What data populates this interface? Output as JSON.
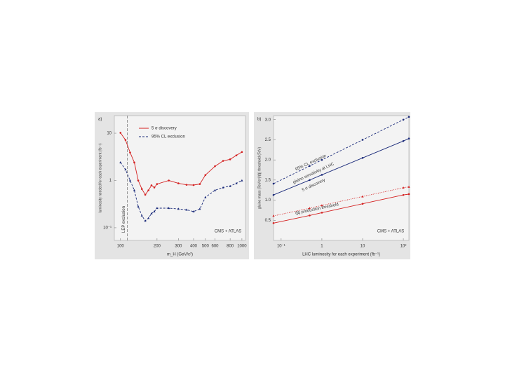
{
  "chart_data": [
    {
      "type": "line",
      "panel": "a)",
      "xlog": true,
      "ylog": true,
      "x_label": "m_H (GeV/c²)",
      "y_label": "luminosity needed for each experiment (fb⁻¹)",
      "x": [
        100,
        110,
        120,
        130,
        140,
        150,
        160,
        170,
        180,
        190,
        200,
        250,
        300,
        350,
        400,
        450,
        500,
        600,
        700,
        800,
        900,
        1000
      ],
      "series": [
        {
          "name": "5 σ discovery",
          "color": "#d42020",
          "dash": "solid",
          "marker": "circle",
          "values": [
            10.2,
            7.2,
            3.9,
            2.4,
            1.0,
            0.66,
            0.5,
            0.62,
            0.79,
            0.71,
            0.84,
            1.0,
            0.87,
            0.81,
            0.8,
            0.84,
            1.3,
            2.0,
            2.6,
            2.8,
            3.4,
            4.0
          ]
        },
        {
          "name": "95% CL exclusion",
          "color": "#1a2a7a",
          "dash": "dashed",
          "marker": "triangle",
          "values": [
            2.4,
            1.7,
            1.0,
            0.62,
            0.28,
            0.18,
            0.14,
            0.16,
            0.2,
            0.22,
            0.26,
            0.26,
            0.25,
            0.24,
            0.22,
            0.25,
            0.44,
            0.62,
            0.71,
            0.76,
            0.87,
            1.0
          ]
        }
      ],
      "vline": {
        "x": 114,
        "label": "LEP exclusion"
      },
      "annotations": [
        "CMS + ATLAS"
      ],
      "legend": "upper left",
      "xlim": [
        89,
        1070
      ],
      "ylim": [
        0.054,
        23.5
      ],
      "xticks": [
        100,
        200,
        300,
        400,
        500,
        600,
        800,
        1000
      ],
      "yticks": [
        {
          "value": 0.1,
          "label": "10⁻¹"
        },
        1,
        10
      ]
    },
    {
      "type": "line",
      "panel": "b)",
      "xlog": true,
      "ylog": false,
      "x_label": "LHC luminosity for each experiment (fb⁻¹)",
      "y_label": "gluino mass (TeV/c²)/(q̃) threshold (TeV)",
      "x": [
        0.065,
        0.5,
        1,
        10,
        100,
        137
      ],
      "series": [
        {
          "color": "#1a2a7a",
          "dash": "dashed",
          "marker": "circle",
          "values": [
            1.41,
            1.85,
            2.0,
            2.5,
            3.0,
            3.07
          ]
        },
        {
          "color": "#1a2a7a",
          "dash": "solid",
          "marker": "circle",
          "values": [
            1.13,
            1.5,
            1.63,
            2.05,
            2.47,
            2.53
          ]
        },
        {
          "color": "#d42020",
          "dash": "dotted",
          "marker": "triangle",
          "values": [
            0.61,
            0.8,
            0.87,
            1.09,
            1.31,
            1.33
          ]
        },
        {
          "color": "#d42020",
          "dash": "solid",
          "marker": "circle",
          "values": [
            0.43,
            0.62,
            0.69,
            0.91,
            1.13,
            1.15
          ]
        }
      ],
      "annotations": [
        "95% CL exclusion",
        "gluino sensitivity at LHC",
        "5 σ discovery",
        "q̃q̃ production threshold",
        "CMS + ATLAS"
      ],
      "xlim": [
        0.065,
        137
      ],
      "ylim": [
        0,
        3.1
      ],
      "xticks": [
        {
          "value": 0.1,
          "label": "10⁻¹"
        },
        1,
        10,
        {
          "value": 100,
          "label": "10²"
        }
      ],
      "yticks": [
        0.5,
        {
          "value": 1,
          "label": "1.0"
        },
        1.5,
        {
          "value": 2,
          "label": "2.0"
        },
        2.5,
        {
          "value": 3,
          "label": "3.0"
        }
      ]
    }
  ]
}
